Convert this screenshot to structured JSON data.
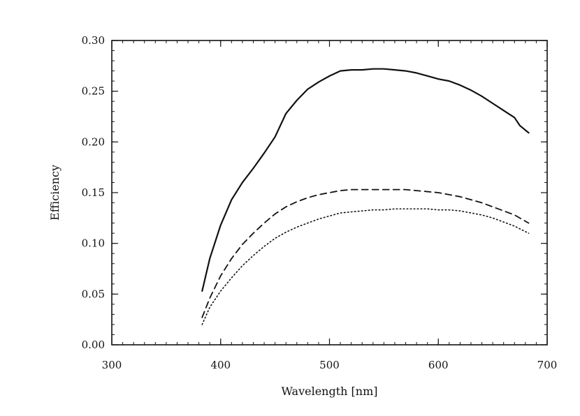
{
  "chart_data": {
    "type": "line",
    "title": "",
    "xlabel": "Wavelength [nm]",
    "ylabel": "Efficiency",
    "xlim": [
      300,
      700
    ],
    "ylim": [
      0.0,
      0.3
    ],
    "xticks": [
      300,
      400,
      500,
      600,
      700
    ],
    "xtick_labels": [
      "300",
      "400",
      "500",
      "600",
      "700"
    ],
    "yticks": [
      0.0,
      0.05,
      0.1,
      0.15,
      0.2,
      0.25,
      0.3
    ],
    "ytick_labels": [
      "0.00",
      "0.05",
      "0.10",
      "0.15",
      "0.20",
      "0.25",
      "0.30"
    ],
    "grid": false,
    "legend": "none",
    "series": [
      {
        "style": "solid",
        "color": "#111111",
        "x": [
          383,
          390,
          400,
          410,
          420,
          430,
          440,
          450,
          460,
          470,
          480,
          490,
          500,
          510,
          520,
          530,
          540,
          550,
          560,
          570,
          580,
          590,
          600,
          610,
          620,
          630,
          640,
          650,
          660,
          670,
          675,
          683
        ],
        "y": [
          0.053,
          0.085,
          0.118,
          0.143,
          0.16,
          0.174,
          0.189,
          0.205,
          0.228,
          0.241,
          0.252,
          0.259,
          0.265,
          0.27,
          0.271,
          0.271,
          0.272,
          0.272,
          0.271,
          0.27,
          0.268,
          0.265,
          0.262,
          0.26,
          0.256,
          0.251,
          0.245,
          0.238,
          0.231,
          0.224,
          0.216,
          0.209
        ]
      },
      {
        "style": "dashed",
        "color": "#111111",
        "x": [
          383,
          390,
          400,
          410,
          420,
          430,
          440,
          450,
          460,
          470,
          480,
          490,
          500,
          510,
          520,
          530,
          540,
          550,
          560,
          570,
          580,
          590,
          600,
          610,
          620,
          630,
          640,
          650,
          660,
          670,
          683
        ],
        "y": [
          0.027,
          0.046,
          0.068,
          0.085,
          0.099,
          0.11,
          0.12,
          0.129,
          0.136,
          0.141,
          0.145,
          0.148,
          0.15,
          0.152,
          0.153,
          0.153,
          0.153,
          0.153,
          0.153,
          0.153,
          0.152,
          0.151,
          0.15,
          0.148,
          0.146,
          0.143,
          0.14,
          0.136,
          0.132,
          0.128,
          0.12
        ]
      },
      {
        "style": "dotted",
        "color": "#111111",
        "x": [
          383,
          390,
          400,
          410,
          420,
          430,
          440,
          450,
          460,
          470,
          480,
          490,
          500,
          510,
          520,
          530,
          540,
          550,
          560,
          570,
          580,
          590,
          600,
          610,
          620,
          630,
          640,
          650,
          660,
          670,
          683
        ],
        "y": [
          0.02,
          0.037,
          0.053,
          0.066,
          0.078,
          0.088,
          0.097,
          0.105,
          0.111,
          0.116,
          0.12,
          0.124,
          0.127,
          0.13,
          0.131,
          0.132,
          0.133,
          0.133,
          0.134,
          0.134,
          0.134,
          0.134,
          0.133,
          0.133,
          0.132,
          0.13,
          0.128,
          0.125,
          0.121,
          0.117,
          0.11
        ]
      }
    ]
  }
}
